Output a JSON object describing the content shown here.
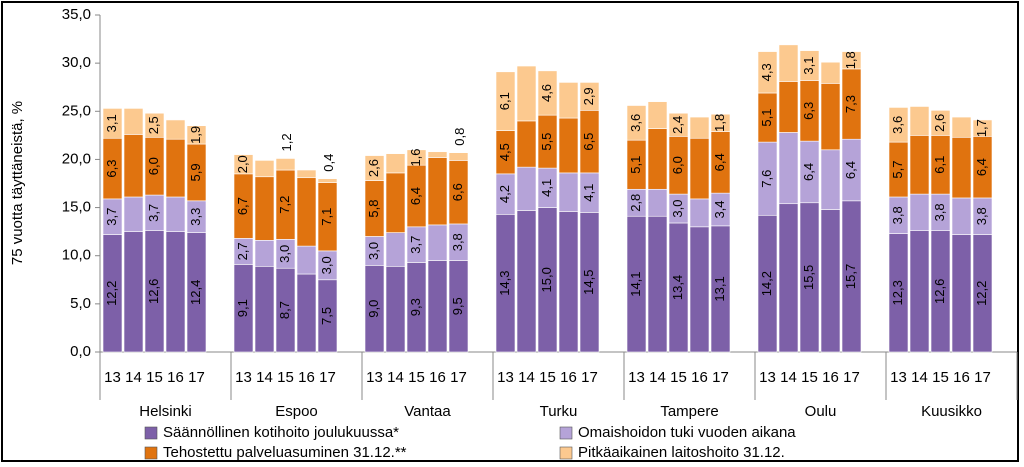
{
  "chart_data": {
    "type": "stacked-bar",
    "y_label": "75 vuotta täyttäneistä, %",
    "categories": [
      "13",
      "14",
      "15",
      "16",
      "17",
      "13",
      "14",
      "15",
      "16",
      "17",
      "13",
      "14",
      "15",
      "16",
      "17",
      "13",
      "14",
      "15",
      "16",
      "17",
      "13",
      "14",
      "15",
      "16",
      "17",
      "13",
      "14",
      "15",
      "16",
      "17",
      "13",
      "14",
      "15",
      "16",
      "17"
    ],
    "groups": [
      "Helsinki",
      "Espoo",
      "Vantaa",
      "Turku",
      "Tampere",
      "Oulu",
      "Kuusikko"
    ],
    "ylim": [
      0,
      35
    ],
    "yticks": [
      {
        "value": 0,
        "label": "0,0"
      },
      {
        "value": 5,
        "label": "5,0"
      },
      {
        "value": 10,
        "label": "10,0"
      },
      {
        "value": 15,
        "label": "15,0"
      },
      {
        "value": 20,
        "label": "20,0"
      },
      {
        "value": 25,
        "label": "25,0"
      },
      {
        "value": 30,
        "label": "30,0"
      },
      {
        "value": 35,
        "label": "35,0"
      }
    ],
    "series": [
      {
        "name": "Säännöllinen kotihoito joulukuussa*",
        "color": "#7d60a8",
        "values": [
          12.2,
          12.5,
          12.6,
          12.5,
          12.4,
          9.1,
          8.9,
          8.7,
          8.1,
          7.5,
          9.0,
          8.9,
          9.3,
          9.5,
          9.5,
          14.3,
          14.7,
          15.0,
          14.6,
          14.5,
          14.1,
          14.1,
          13.4,
          13.0,
          13.1,
          14.2,
          15.4,
          15.5,
          14.8,
          15.7,
          12.3,
          12.6,
          12.6,
          12.2,
          12.2
        ],
        "value_labels": [
          "12,2",
          null,
          "12,6",
          null,
          "12,4",
          "9,1",
          null,
          "8,7",
          null,
          "7,5",
          "9,0",
          null,
          "9,3",
          null,
          "9,5",
          "14,3",
          null,
          "15,0",
          null,
          "14,5",
          "14,1",
          null,
          "13,4",
          null,
          "13,1",
          "14,2",
          null,
          "15,5",
          null,
          "15,7",
          "12,3",
          null,
          "12,6",
          null,
          "12,2"
        ]
      },
      {
        "name": "Omaishoidon tuki vuoden aikana",
        "color": "#b5a3d8",
        "values": [
          3.7,
          3.6,
          3.7,
          3.6,
          3.3,
          2.7,
          2.7,
          3.0,
          2.9,
          3.0,
          3.0,
          3.5,
          3.7,
          3.7,
          3.8,
          4.2,
          4.5,
          4.1,
          4.0,
          4.1,
          2.8,
          2.8,
          3.0,
          2.9,
          3.4,
          7.6,
          7.4,
          6.4,
          6.2,
          6.4,
          3.8,
          3.8,
          3.8,
          3.8,
          3.8
        ],
        "value_labels": [
          "3,7",
          null,
          "3,7",
          null,
          "3,3",
          "2,7",
          null,
          "3,0",
          null,
          "3,0",
          "3,0",
          null,
          "3,7",
          null,
          "3,8",
          "4,2",
          null,
          "4,1",
          null,
          "4,1",
          "2,8",
          null,
          "3,0",
          null,
          "3,4",
          "7,6",
          null,
          "6,4",
          null,
          "6,4",
          "3,8",
          null,
          "3,8",
          null,
          "3,8"
        ]
      },
      {
        "name": "Tehostettu palveluasuminen 31.12.**",
        "color": "#e0730f",
        "values": [
          6.3,
          6.5,
          6.0,
          6.0,
          5.9,
          6.7,
          6.6,
          7.2,
          7.1,
          7.1,
          5.8,
          6.2,
          6.4,
          7.0,
          6.6,
          4.5,
          4.8,
          5.5,
          5.7,
          6.5,
          5.1,
          6.3,
          6.0,
          6.3,
          6.4,
          5.1,
          5.3,
          6.3,
          6.9,
          7.3,
          5.7,
          6.1,
          6.1,
          6.3,
          6.4
        ],
        "value_labels": [
          "6,3",
          null,
          "6,0",
          null,
          "5,9",
          "6,7",
          null,
          "7,2",
          null,
          "7,1",
          "5,8",
          null,
          "6,4",
          null,
          "6,6",
          "4,5",
          null,
          "5,5",
          null,
          "6,5",
          "5,1",
          null,
          "6,0",
          null,
          "6,4",
          "5,1",
          null,
          "6,3",
          null,
          "7,3",
          "5,7",
          null,
          "6,1",
          null,
          "6,4"
        ]
      },
      {
        "name": "Pitkäaikainen laitoshoito 31.12.",
        "color": "#fcc98f",
        "values": [
          3.1,
          2.7,
          2.5,
          2.0,
          1.9,
          2.0,
          1.7,
          1.2,
          0.8,
          0.4,
          2.6,
          2.0,
          1.6,
          0.6,
          0.8,
          6.1,
          5.7,
          4.6,
          3.7,
          2.9,
          3.6,
          2.8,
          2.4,
          2.2,
          1.8,
          4.3,
          3.8,
          3.1,
          2.2,
          1.8,
          3.6,
          3.0,
          2.6,
          2.1,
          1.7
        ],
        "value_labels": [
          "3,1",
          null,
          "2,5",
          null,
          "1,9",
          "2,0",
          null,
          "1,2",
          null,
          "0,4",
          "2,6",
          null,
          "1,6",
          null,
          "0,8",
          "6,1",
          null,
          "4,6",
          null,
          "2,9",
          "3,6",
          null,
          "2,4",
          null,
          "1,8",
          "4,3",
          null,
          "3,1",
          null,
          "1,8",
          "3,6",
          null,
          "2,6",
          null,
          "1,7"
        ]
      }
    ]
  }
}
